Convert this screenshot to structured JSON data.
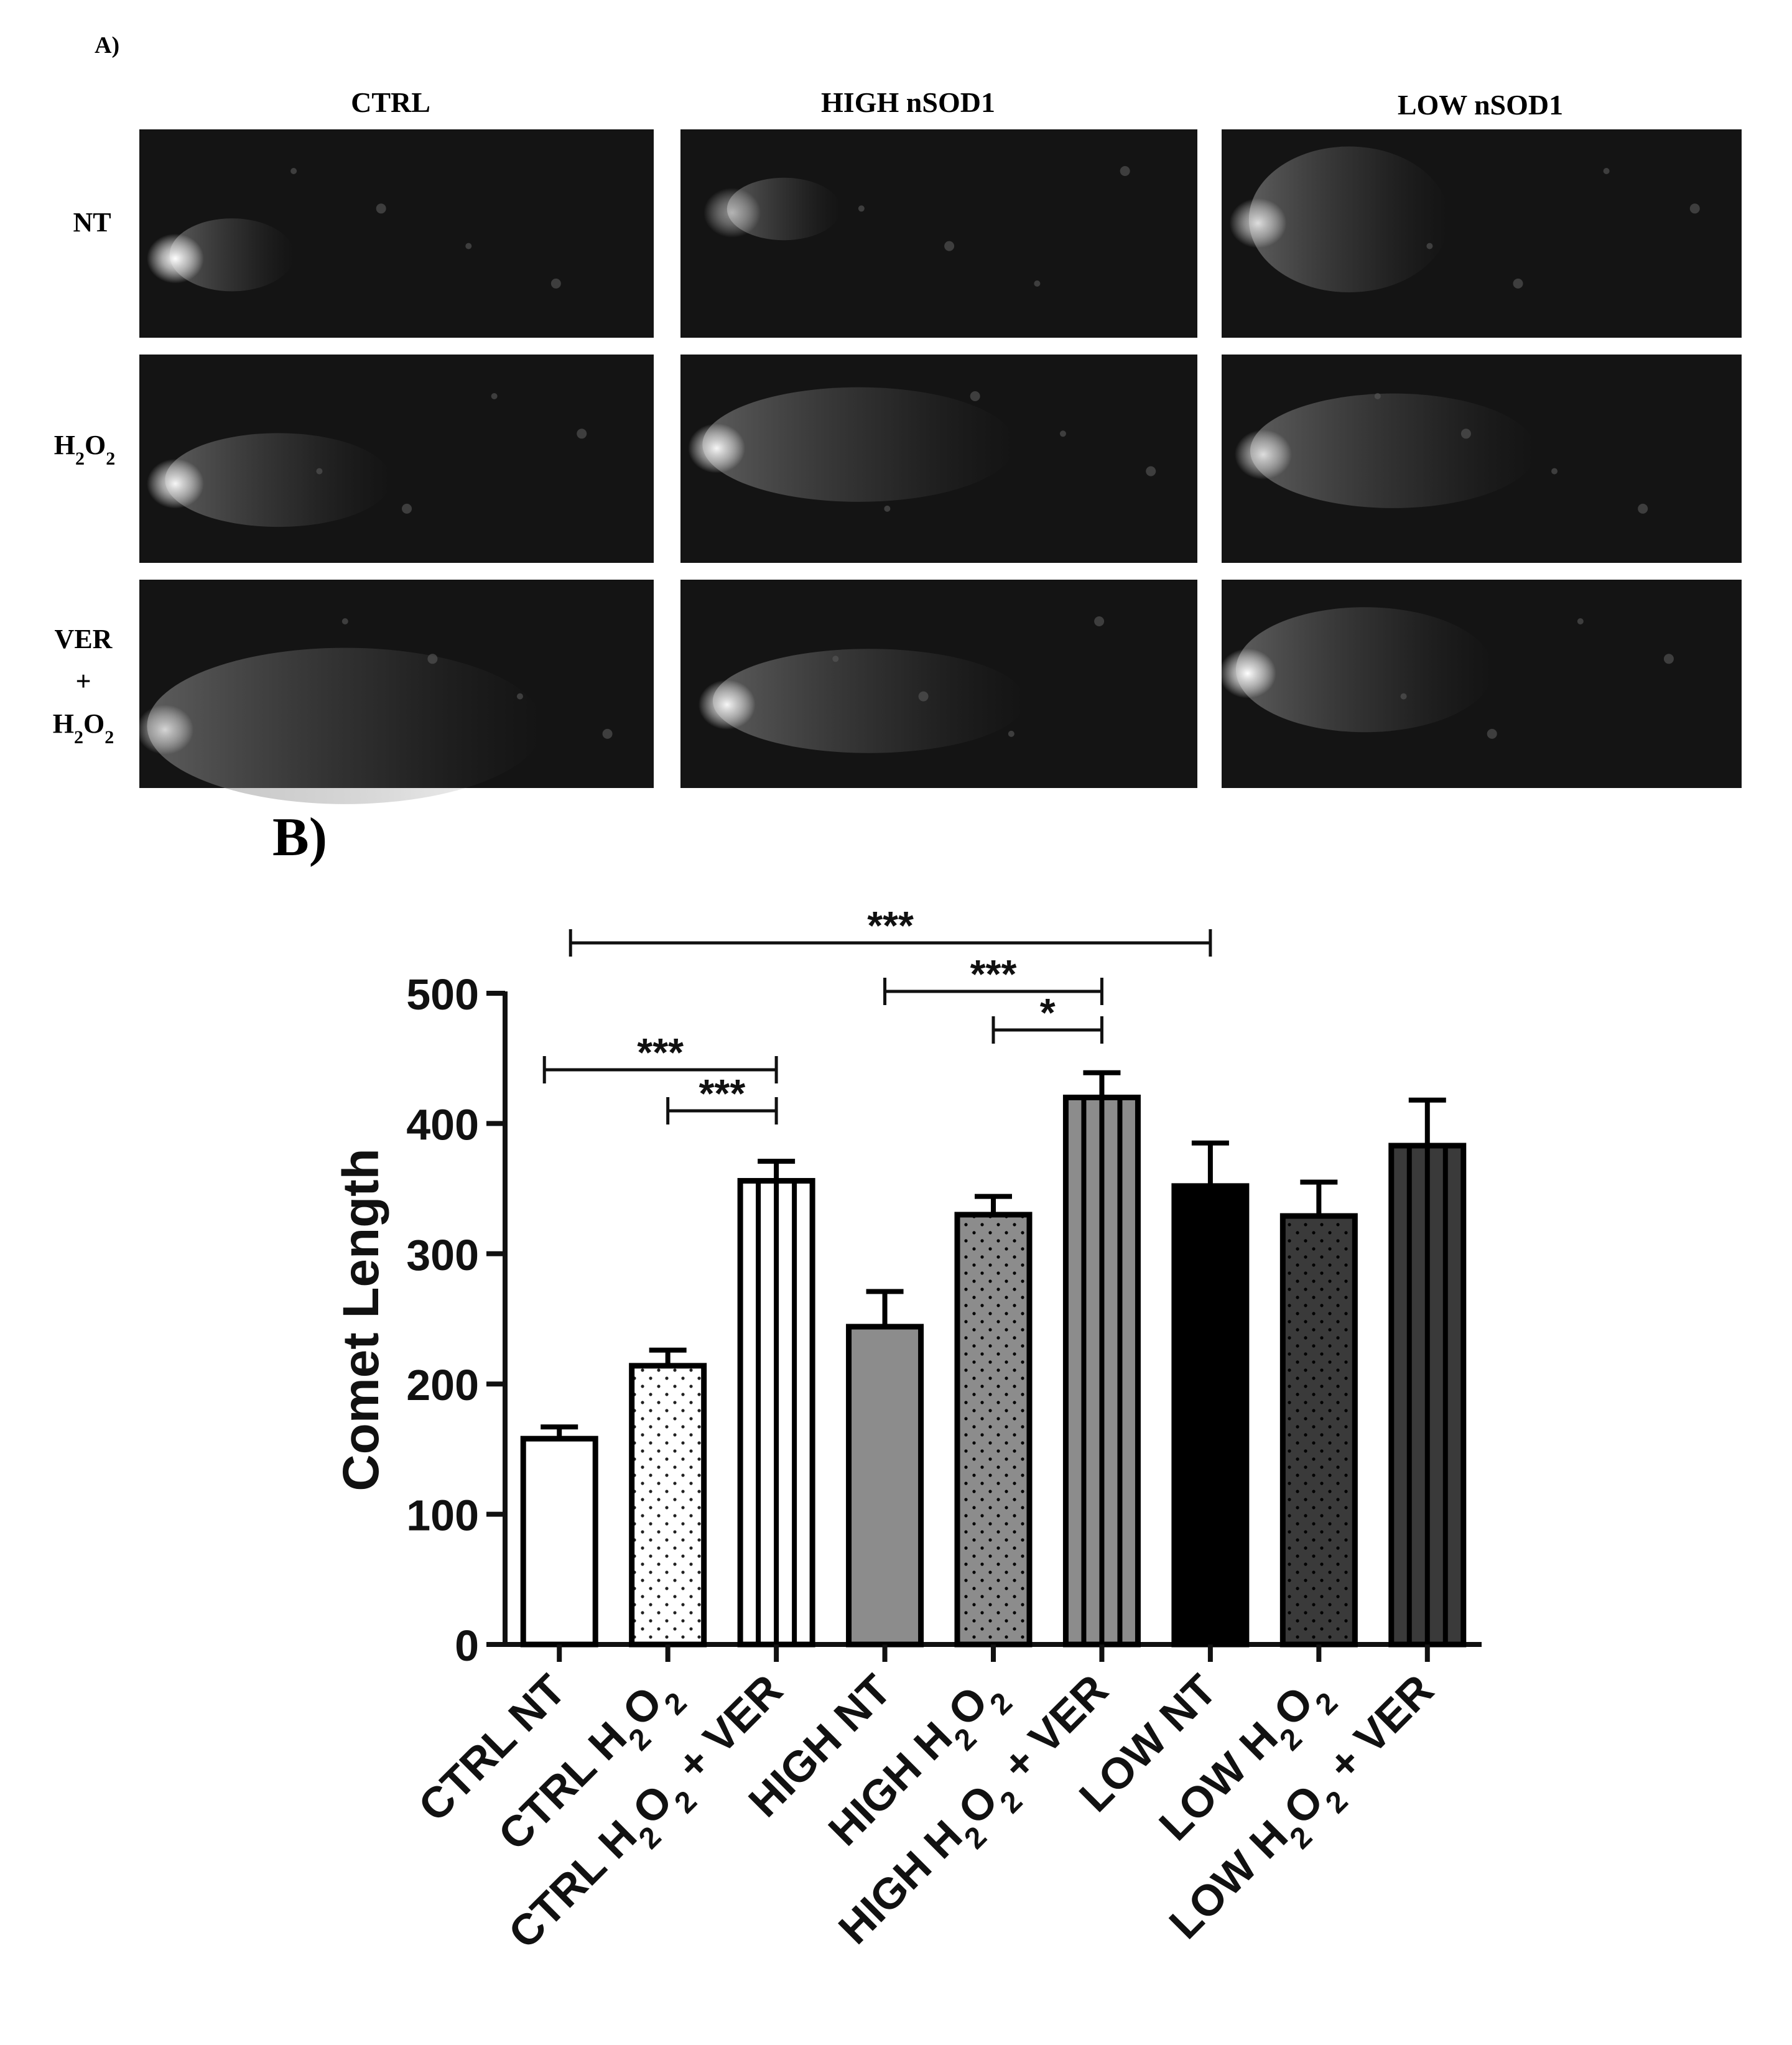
{
  "panel_a": {
    "label": "A)",
    "columns": [
      "CTRL",
      "HIGH nSOD1",
      "LOW nSOD1"
    ],
    "rows": [
      {
        "parts": [
          {
            "t": "NT"
          }
        ]
      },
      {
        "parts": [
          {
            "t": "H"
          },
          {
            "t": "2",
            "sub": true
          },
          {
            "t": "O"
          },
          {
            "t": "2",
            "sub": true
          }
        ]
      },
      {
        "parts": [
          {
            "t": "VER"
          }
        ],
        "line2": "+",
        "line3": [
          {
            "t": "H"
          },
          {
            "t": "2",
            "sub": true
          },
          {
            "t": "O"
          },
          {
            "t": "2",
            "sub": true
          }
        ]
      }
    ],
    "image_fill": "#141414",
    "comet_color": "#ffffff"
  },
  "panel_b": {
    "label": "B)"
  },
  "chart_data": {
    "type": "bar",
    "ylabel": "Comet Length",
    "ylim": [
      0,
      500
    ],
    "yticks": [
      "0",
      "100",
      "200",
      "300",
      "400",
      "500"
    ],
    "grid": false,
    "categories": [
      {
        "label": "CTRL NT",
        "parts": [
          {
            "t": "CTRL NT"
          }
        ]
      },
      {
        "label": "CTRL H2O2",
        "parts": [
          {
            "t": "CTRL H"
          },
          {
            "t": "2",
            "sub": true
          },
          {
            "t": "O"
          },
          {
            "t": "2",
            "sub": true
          }
        ]
      },
      {
        "label": "CTRL H2O2 + VER",
        "parts": [
          {
            "t": "CTRL H"
          },
          {
            "t": "2",
            "sub": true
          },
          {
            "t": "O"
          },
          {
            "t": "2",
            "sub": true
          },
          {
            "t": " + VER"
          }
        ]
      },
      {
        "label": "HIGH NT",
        "parts": [
          {
            "t": "HIGH NT"
          }
        ]
      },
      {
        "label": "HIGH H2O2",
        "parts": [
          {
            "t": "HIGH H"
          },
          {
            "t": "2",
            "sub": true
          },
          {
            "t": "O"
          },
          {
            "t": "2",
            "sub": true
          }
        ]
      },
      {
        "label": "HIGH H2O2 + VER",
        "parts": [
          {
            "t": "HIGH H"
          },
          {
            "t": "2",
            "sub": true
          },
          {
            "t": "O"
          },
          {
            "t": "2",
            "sub": true
          },
          {
            "t": " + VER"
          }
        ]
      },
      {
        "label": "LOW NT",
        "parts": [
          {
            "t": "LOW NT"
          }
        ]
      },
      {
        "label": "LOW H2O2",
        "parts": [
          {
            "t": "LOW H"
          },
          {
            "t": "2",
            "sub": true
          },
          {
            "t": "O"
          },
          {
            "t": "2",
            "sub": true
          }
        ]
      },
      {
        "label": "LOW H2O2 + VER",
        "parts": [
          {
            "t": "LOW H"
          },
          {
            "t": "2",
            "sub": true
          },
          {
            "t": "O"
          },
          {
            "t": "2",
            "sub": true
          },
          {
            "t": " + VER"
          }
        ]
      }
    ],
    "values": [
      158,
      214,
      356,
      244,
      330,
      420,
      352,
      329,
      383
    ],
    "errors": [
      9,
      12,
      15,
      27,
      14,
      19,
      33,
      26,
      35
    ],
    "bar_styles": [
      {
        "fill": "#ffffff",
        "pattern": "none"
      },
      {
        "fill": "#ffffff",
        "pattern": "dots"
      },
      {
        "fill": "#ffffff",
        "pattern": "stripes"
      },
      {
        "fill": "#8c8c8c",
        "pattern": "none"
      },
      {
        "fill": "#8c8c8c",
        "pattern": "dots"
      },
      {
        "fill": "#8c8c8c",
        "pattern": "stripes"
      },
      {
        "fill": "#000000",
        "pattern": "none"
      },
      {
        "fill": "#3a3a3a",
        "pattern": "dots"
      },
      {
        "fill": "#3a3a3a",
        "pattern": "stripes"
      }
    ],
    "significance": [
      {
        "from": 0,
        "to": 6,
        "label": "***"
      },
      {
        "from": 3,
        "to": 5,
        "label": "***"
      },
      {
        "from": 4,
        "to": 5,
        "label": "*"
      },
      {
        "from": 0,
        "to": 2,
        "label": "***"
      },
      {
        "from": 1,
        "to": 2,
        "label": "***"
      }
    ]
  }
}
